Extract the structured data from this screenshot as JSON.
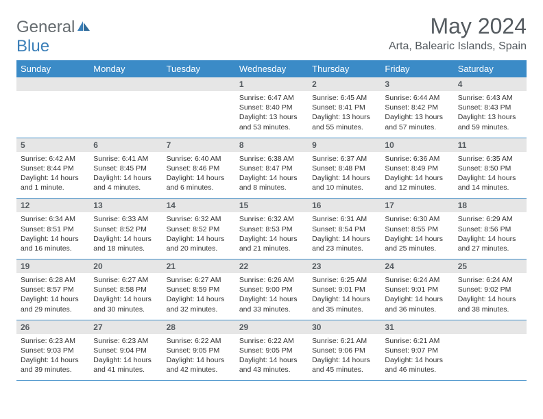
{
  "logo": {
    "text1": "General",
    "text2": "Blue"
  },
  "title": "May 2024",
  "location": "Arta, Balearic Islands, Spain",
  "colors": {
    "header_bg": "#3b8bc7",
    "header_text": "#ffffff",
    "daynum_bg": "#e6e6e6",
    "text": "#333333",
    "border": "#3b8bc7",
    "logo_grey": "#666c70",
    "logo_blue": "#3b7fb8"
  },
  "daysOfWeek": [
    "Sunday",
    "Monday",
    "Tuesday",
    "Wednesday",
    "Thursday",
    "Friday",
    "Saturday"
  ],
  "weeks": [
    [
      null,
      null,
      null,
      {
        "n": "1",
        "sunrise": "6:47 AM",
        "sunset": "8:40 PM",
        "daylight": "13 hours and 53 minutes."
      },
      {
        "n": "2",
        "sunrise": "6:45 AM",
        "sunset": "8:41 PM",
        "daylight": "13 hours and 55 minutes."
      },
      {
        "n": "3",
        "sunrise": "6:44 AM",
        "sunset": "8:42 PM",
        "daylight": "13 hours and 57 minutes."
      },
      {
        "n": "4",
        "sunrise": "6:43 AM",
        "sunset": "8:43 PM",
        "daylight": "13 hours and 59 minutes."
      }
    ],
    [
      {
        "n": "5",
        "sunrise": "6:42 AM",
        "sunset": "8:44 PM",
        "daylight": "14 hours and 1 minute."
      },
      {
        "n": "6",
        "sunrise": "6:41 AM",
        "sunset": "8:45 PM",
        "daylight": "14 hours and 4 minutes."
      },
      {
        "n": "7",
        "sunrise": "6:40 AM",
        "sunset": "8:46 PM",
        "daylight": "14 hours and 6 minutes."
      },
      {
        "n": "8",
        "sunrise": "6:38 AM",
        "sunset": "8:47 PM",
        "daylight": "14 hours and 8 minutes."
      },
      {
        "n": "9",
        "sunrise": "6:37 AM",
        "sunset": "8:48 PM",
        "daylight": "14 hours and 10 minutes."
      },
      {
        "n": "10",
        "sunrise": "6:36 AM",
        "sunset": "8:49 PM",
        "daylight": "14 hours and 12 minutes."
      },
      {
        "n": "11",
        "sunrise": "6:35 AM",
        "sunset": "8:50 PM",
        "daylight": "14 hours and 14 minutes."
      }
    ],
    [
      {
        "n": "12",
        "sunrise": "6:34 AM",
        "sunset": "8:51 PM",
        "daylight": "14 hours and 16 minutes."
      },
      {
        "n": "13",
        "sunrise": "6:33 AM",
        "sunset": "8:52 PM",
        "daylight": "14 hours and 18 minutes."
      },
      {
        "n": "14",
        "sunrise": "6:32 AM",
        "sunset": "8:52 PM",
        "daylight": "14 hours and 20 minutes."
      },
      {
        "n": "15",
        "sunrise": "6:32 AM",
        "sunset": "8:53 PM",
        "daylight": "14 hours and 21 minutes."
      },
      {
        "n": "16",
        "sunrise": "6:31 AM",
        "sunset": "8:54 PM",
        "daylight": "14 hours and 23 minutes."
      },
      {
        "n": "17",
        "sunrise": "6:30 AM",
        "sunset": "8:55 PM",
        "daylight": "14 hours and 25 minutes."
      },
      {
        "n": "18",
        "sunrise": "6:29 AM",
        "sunset": "8:56 PM",
        "daylight": "14 hours and 27 minutes."
      }
    ],
    [
      {
        "n": "19",
        "sunrise": "6:28 AM",
        "sunset": "8:57 PM",
        "daylight": "14 hours and 29 minutes."
      },
      {
        "n": "20",
        "sunrise": "6:27 AM",
        "sunset": "8:58 PM",
        "daylight": "14 hours and 30 minutes."
      },
      {
        "n": "21",
        "sunrise": "6:27 AM",
        "sunset": "8:59 PM",
        "daylight": "14 hours and 32 minutes."
      },
      {
        "n": "22",
        "sunrise": "6:26 AM",
        "sunset": "9:00 PM",
        "daylight": "14 hours and 33 minutes."
      },
      {
        "n": "23",
        "sunrise": "6:25 AM",
        "sunset": "9:01 PM",
        "daylight": "14 hours and 35 minutes."
      },
      {
        "n": "24",
        "sunrise": "6:24 AM",
        "sunset": "9:01 PM",
        "daylight": "14 hours and 36 minutes."
      },
      {
        "n": "25",
        "sunrise": "6:24 AM",
        "sunset": "9:02 PM",
        "daylight": "14 hours and 38 minutes."
      }
    ],
    [
      {
        "n": "26",
        "sunrise": "6:23 AM",
        "sunset": "9:03 PM",
        "daylight": "14 hours and 39 minutes."
      },
      {
        "n": "27",
        "sunrise": "6:23 AM",
        "sunset": "9:04 PM",
        "daylight": "14 hours and 41 minutes."
      },
      {
        "n": "28",
        "sunrise": "6:22 AM",
        "sunset": "9:05 PM",
        "daylight": "14 hours and 42 minutes."
      },
      {
        "n": "29",
        "sunrise": "6:22 AM",
        "sunset": "9:05 PM",
        "daylight": "14 hours and 43 minutes."
      },
      {
        "n": "30",
        "sunrise": "6:21 AM",
        "sunset": "9:06 PM",
        "daylight": "14 hours and 45 minutes."
      },
      {
        "n": "31",
        "sunrise": "6:21 AM",
        "sunset": "9:07 PM",
        "daylight": "14 hours and 46 minutes."
      },
      null
    ]
  ]
}
